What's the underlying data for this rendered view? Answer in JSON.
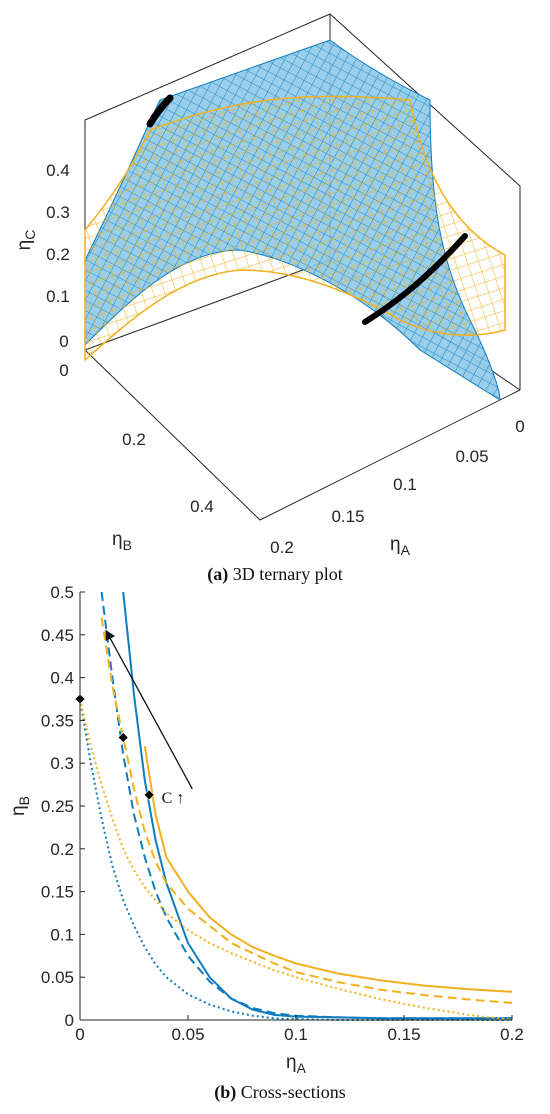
{
  "colors": {
    "blue": "#0E7CBF",
    "orange": "#F2B01E",
    "axis": "#262626",
    "marker": "#000000"
  },
  "panel_a": {
    "caption_label": "(a)",
    "caption_text": " 3D ternary plot",
    "ylabel": {
      "symbol": "η",
      "sub": "C"
    },
    "xlabel": {
      "symbol": "η",
      "sub": "A"
    },
    "zlabel": {
      "symbol": "η",
      "sub": "B"
    }
  },
  "panel_b": {
    "caption_label": "(b)",
    "caption_text": " Cross-sections",
    "annotation": "C ↑"
  },
  "chart_data": [
    {
      "type": "surface",
      "panel": "a",
      "axes": {
        "eta_A": {
          "ticks": [
            "0",
            "0.05",
            "0.1",
            "0.15",
            "0.2"
          ],
          "range": [
            0,
            0.2
          ]
        },
        "eta_B": {
          "ticks": [
            "0",
            "0.2",
            "0.4"
          ],
          "range": [
            0,
            0.5
          ]
        },
        "eta_C": {
          "ticks": [
            "0",
            "0.1",
            "0.2",
            "0.3",
            "0.4"
          ],
          "range": [
            0,
            0.45
          ]
        }
      },
      "series": [
        {
          "color": "#0E7CBF",
          "style": "mesh"
        },
        {
          "color": "#F2B01E",
          "style": "mesh"
        }
      ],
      "markers": "black diamonds along two boundary curves",
      "grid": false
    },
    {
      "type": "line",
      "panel": "b",
      "xlabel": {
        "symbol": "η",
        "sub": "A"
      },
      "ylabel": {
        "symbol": "η",
        "sub": "B"
      },
      "xlim": [
        0,
        0.2
      ],
      "ylim": [
        0,
        0.5
      ],
      "xticks": [
        0,
        0.05,
        0.1,
        0.15,
        0.2
      ],
      "xtick_labels": [
        "0",
        "0.05",
        "0.1",
        "0.15",
        "0.2"
      ],
      "yticks": [
        0,
        0.05,
        0.1,
        0.15,
        0.2,
        0.25,
        0.3,
        0.35,
        0.4,
        0.45,
        0.5
      ],
      "ytick_labels": [
        "0",
        "0.05",
        "0.1",
        "0.15",
        "0.2",
        "0.25",
        "0.3",
        "0.35",
        "0.4",
        "0.45",
        "0.5"
      ],
      "grid": false,
      "x": [
        0.0,
        0.005,
        0.01,
        0.015,
        0.02,
        0.025,
        0.03,
        0.035,
        0.04,
        0.05,
        0.06,
        0.07,
        0.08,
        0.09,
        0.1,
        0.12,
        0.14,
        0.16,
        0.18,
        0.2
      ],
      "series": [
        {
          "color": "#0E7CBF",
          "dash": "solid",
          "values": [
            null,
            null,
            null,
            null,
            0.5,
            0.38,
            0.28,
            0.21,
            0.16,
            0.09,
            0.05,
            0.025,
            0.012,
            0.006,
            0.004,
            0.003,
            0.002,
            0.002,
            0.002,
            0.002
          ]
        },
        {
          "color": "#0E7CBF",
          "dash": "dashed",
          "values": [
            null,
            null,
            0.5,
            0.4,
            0.31,
            0.24,
            0.19,
            0.15,
            0.12,
            0.075,
            0.045,
            0.025,
            0.014,
            0.008,
            0.005,
            0.003,
            0.002,
            0.002,
            0.002,
            0.002
          ]
        },
        {
          "color": "#0E7CBF",
          "dash": "dotted",
          "values": [
            0.375,
            0.3,
            0.235,
            0.18,
            0.14,
            0.11,
            0.085,
            0.065,
            0.05,
            0.03,
            0.018,
            0.01,
            0.005,
            0.002,
            0.001,
            0.0,
            0.0,
            0.0,
            0.0,
            0.0
          ]
        },
        {
          "color": "#F2B01E",
          "dash": "solid",
          "values": [
            null,
            null,
            null,
            null,
            null,
            null,
            0.32,
            0.24,
            0.19,
            0.15,
            0.12,
            0.1,
            0.085,
            0.075,
            0.066,
            0.054,
            0.046,
            0.04,
            0.036,
            0.033
          ]
        },
        {
          "color": "#F2B01E",
          "dash": "dashed",
          "values": [
            null,
            null,
            0.47,
            0.39,
            0.33,
            0.27,
            0.22,
            0.185,
            0.16,
            0.13,
            0.11,
            0.09,
            0.078,
            0.066,
            0.056,
            0.044,
            0.035,
            0.029,
            0.024,
            0.02
          ]
        },
        {
          "color": "#F2B01E",
          "dash": "dotted",
          "values": [
            0.375,
            0.32,
            0.275,
            0.235,
            0.2,
            0.175,
            0.155,
            0.14,
            0.125,
            0.105,
            0.09,
            0.078,
            0.068,
            0.058,
            0.05,
            0.036,
            0.024,
            0.014,
            0.006,
            0.0
          ]
        }
      ],
      "markers": [
        {
          "x": 0.0,
          "y": 0.375
        },
        {
          "x": 0.02,
          "y": 0.33
        },
        {
          "x": 0.032,
          "y": 0.263
        }
      ],
      "annotation": {
        "text": "C ↑",
        "from": [
          0.052,
          0.27
        ],
        "to": [
          0.012,
          0.455
        ]
      }
    }
  ]
}
